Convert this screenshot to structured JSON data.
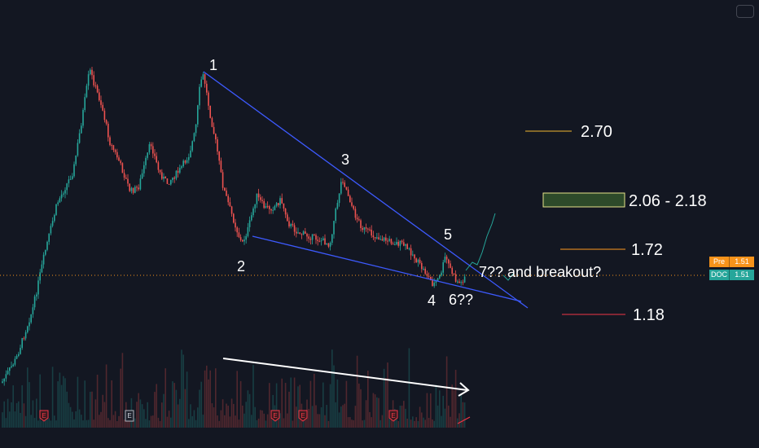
{
  "chart_data": {
    "type": "candlestick",
    "current_price": 1.51,
    "wave_labels": [
      "1",
      "2",
      "3",
      "4",
      "5",
      "6??",
      "7??"
    ],
    "targets": [
      {
        "label": "2.70",
        "value": 2.7,
        "color": "#f2b730"
      },
      {
        "label": "2.06 - 2.18",
        "low": 2.06,
        "high": 2.18,
        "color": "#e6e38a"
      },
      {
        "label": "1.72",
        "value": 1.72,
        "color": "#ff9a1f"
      },
      {
        "label": "1.18",
        "value": 1.18,
        "color": "#f23645"
      }
    ],
    "annotation": "7?? and breakout?",
    "event_markers": [
      "E",
      "E",
      "E",
      "E",
      "E"
    ],
    "price_tags": [
      {
        "name": "Pre",
        "value": "1.51",
        "color": "#f7931a"
      },
      {
        "name": "DOC",
        "value": "1.51",
        "color": "#26a69a"
      }
    ],
    "line_colors": {
      "up": "#26a69a",
      "down": "#ef5350",
      "trend": "#2962ff",
      "arrow": "#ffffff",
      "price_line": "#f7931a"
    }
  }
}
